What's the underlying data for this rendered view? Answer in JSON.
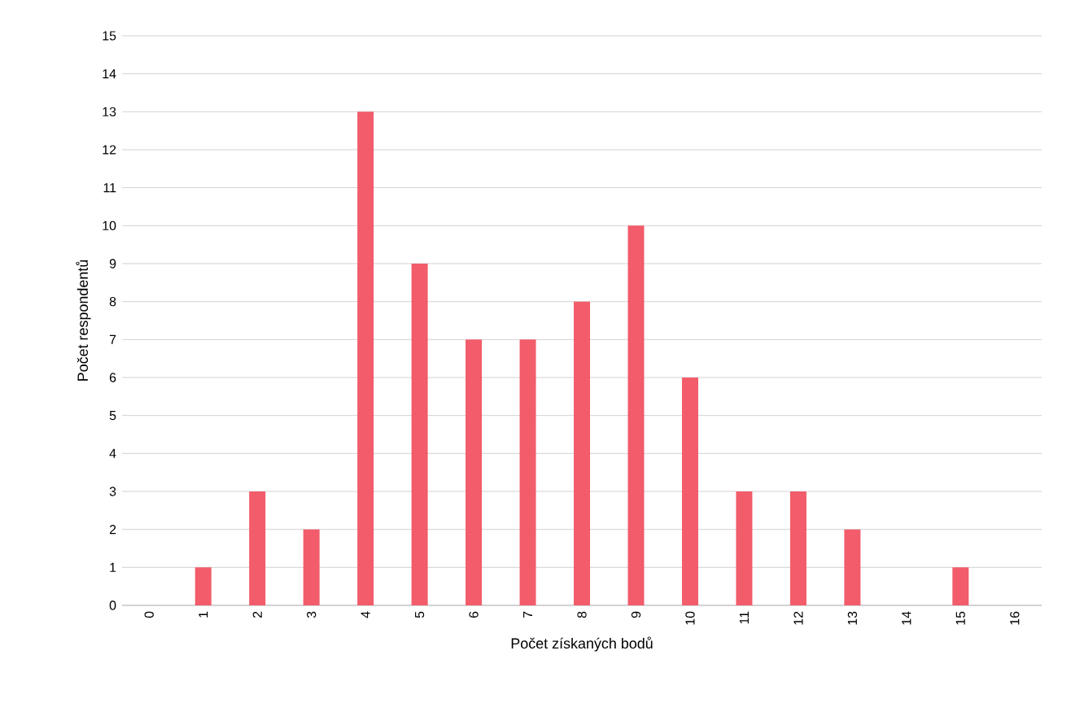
{
  "chart_data": {
    "type": "bar",
    "xlabel": "Počet získaných bodů",
    "ylabel": "Počet respondentů",
    "categories": [
      "0",
      "1",
      "2",
      "3",
      "4",
      "5",
      "6",
      "7",
      "8",
      "9",
      "10",
      "11",
      "12",
      "13",
      "14",
      "15",
      "16"
    ],
    "values": [
      0,
      1,
      3,
      2,
      13,
      9,
      7,
      7,
      8,
      10,
      6,
      3,
      3,
      2,
      0,
      1,
      0
    ],
    "color": "#f25c6b",
    "ylim": [
      0,
      15
    ],
    "yticks": [
      0,
      1,
      2,
      3,
      4,
      5,
      6,
      7,
      8,
      9,
      10,
      11,
      12,
      13,
      14,
      15
    ],
    "grid": "y"
  }
}
